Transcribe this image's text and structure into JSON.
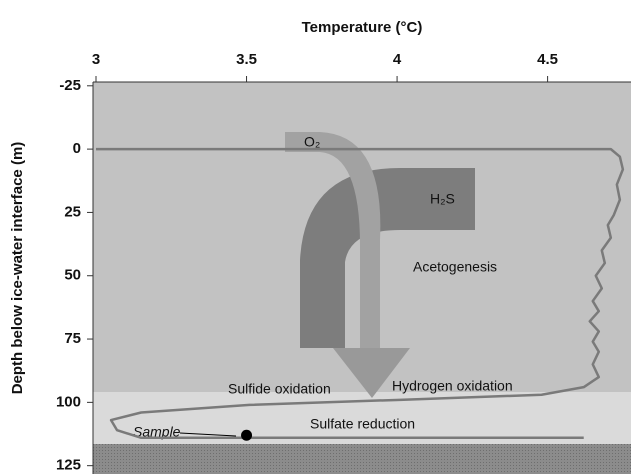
{
  "chart_data": {
    "type": "line",
    "x_label": "Temperature (°C)",
    "y_label": "Depth below ice-water interface (m)",
    "x": [
      3.0,
      4.71,
      4.74,
      4.75,
      4.73,
      4.74,
      4.72,
      4.7,
      4.71,
      4.68,
      4.69,
      4.66,
      4.68,
      4.65,
      4.67,
      4.64,
      4.67,
      4.65,
      4.67,
      4.65,
      4.67,
      4.62,
      4.48,
      4.01,
      3.51,
      3.15,
      3.05,
      3.07,
      3.15,
      4.62
    ],
    "values": [
      0,
      0,
      3,
      8,
      14,
      20,
      26,
      30,
      35,
      40,
      45,
      50,
      55,
      60,
      64,
      68,
      72,
      76,
      80,
      85,
      90,
      94,
      97,
      99,
      101,
      104,
      107,
      111,
      114,
      114
    ],
    "color": "#7a7a7a",
    "xlim": [
      2.99,
      4.777
    ],
    "xticks": [
      3,
      3.5,
      4,
      4.5
    ],
    "ylim": [
      -26.5,
      127.5
    ],
    "yticks": [
      -25,
      0,
      25,
      50,
      75,
      100,
      125
    ],
    "y_inverted": true,
    "sample": {
      "label": "Sample",
      "x": 3.5,
      "y": 113,
      "color": "#000000"
    },
    "flows": [
      "O₂",
      "H₂S"
    ],
    "annotations": [
      "Acetogenesis",
      "Sulfide oxidation",
      "Hydrogen oxidation",
      "Sulfate reduction"
    ]
  }
}
